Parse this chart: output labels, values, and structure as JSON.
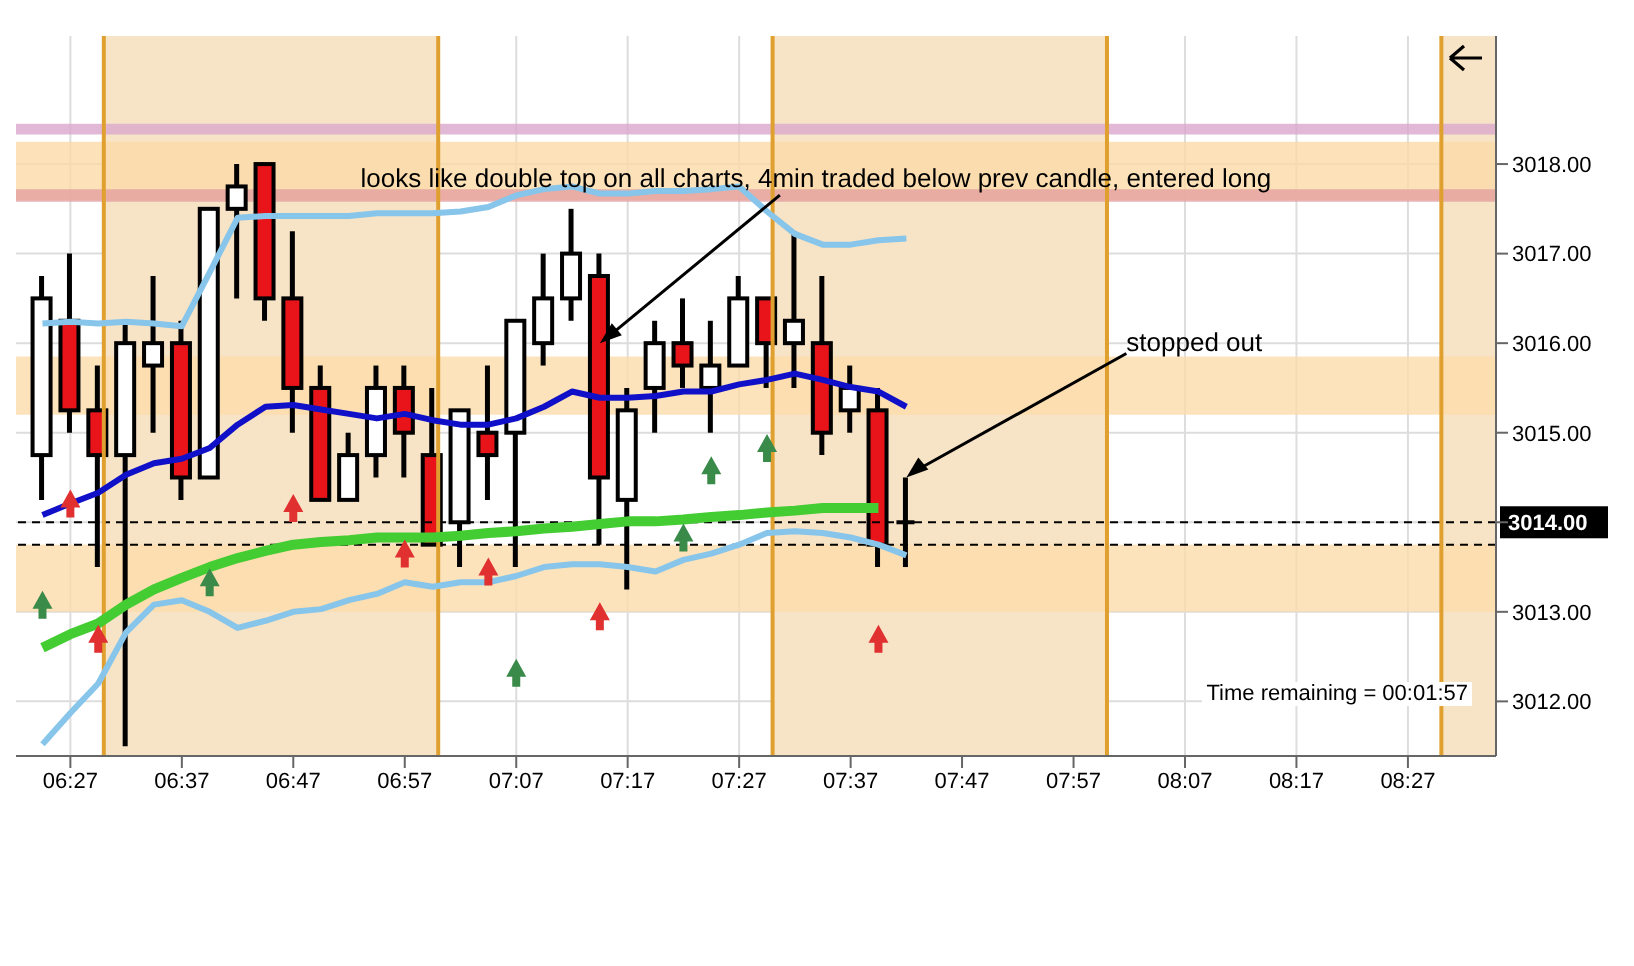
{
  "chart_data": {
    "type": "candlestick",
    "x": [
      6.4083,
      6.45,
      6.4917,
      6.5333,
      6.575,
      6.6167,
      6.6583,
      6.7,
      6.7417,
      6.7833,
      6.825,
      6.8667,
      6.9083,
      6.95,
      6.9917,
      7.0333,
      7.075,
      7.1167,
      7.1583,
      7.2,
      7.2417,
      7.2833,
      7.325,
      7.3667,
      7.4083,
      7.45,
      7.4917,
      7.5333,
      7.575,
      7.6167,
      7.6583,
      7.7
    ],
    "ohlc": [
      [
        3014.75,
        3016.75,
        3014.25,
        3016.5
      ],
      [
        3016.25,
        3017,
        3015,
        3015.25
      ],
      [
        3015.25,
        3015.75,
        3013.5,
        3014.75
      ],
      [
        3014.75,
        3016.25,
        3011.5,
        3016
      ],
      [
        3015.75,
        3016.75,
        3015,
        3016
      ],
      [
        3016,
        3016.25,
        3014.25,
        3014.5
      ],
      [
        3014.5,
        3017.5,
        3014.5,
        3017.5
      ],
      [
        3017.5,
        3018,
        3016.5,
        3017.75
      ],
      [
        3018,
        3018,
        3016.25,
        3016.5
      ],
      [
        3016.5,
        3017.25,
        3015,
        3015.5
      ],
      [
        3015.5,
        3015.75,
        3014.25,
        3014.25
      ],
      [
        3014.25,
        3015,
        3014.25,
        3014.75
      ],
      [
        3014.75,
        3015.75,
        3014.5,
        3015.5
      ],
      [
        3015.5,
        3015.75,
        3014.5,
        3015
      ],
      [
        3014.75,
        3015.5,
        3013.75,
        3013.75
      ],
      [
        3014,
        3015.25,
        3013.5,
        3015.25
      ],
      [
        3015,
        3015.75,
        3014.25,
        3014.75
      ],
      [
        3015,
        3016.25,
        3013.5,
        3016.25
      ],
      [
        3016,
        3017,
        3015.75,
        3016.5
      ],
      [
        3016.5,
        3017.5,
        3016.25,
        3017
      ],
      [
        3016.75,
        3017,
        3013.75,
        3014.5
      ],
      [
        3014.25,
        3015.5,
        3013.25,
        3015.25
      ],
      [
        3015.5,
        3016.25,
        3015,
        3016
      ],
      [
        3016,
        3016.5,
        3015.5,
        3015.75
      ],
      [
        3015.5,
        3016.25,
        3015,
        3015.75
      ],
      [
        3015.75,
        3016.75,
        3015.75,
        3016.5
      ],
      [
        3016.5,
        3016.5,
        3015.5,
        3016
      ],
      [
        3016,
        3017.25,
        3015.5,
        3016.25
      ],
      [
        3016,
        3016.75,
        3014.75,
        3015
      ],
      [
        3015.25,
        3015.75,
        3015,
        3015.5
      ],
      [
        3015.25,
        3015.5,
        3013.5,
        3013.75
      ],
      [
        3014,
        3014.5,
        3013.5,
        3014
      ]
    ],
    "colors": [
      "#ffffff",
      "#e8141a",
      "#e8141a",
      "#ffffff",
      "#ffffff",
      "#e8141a",
      "#ffffff",
      "#ffffff",
      "#e8141a",
      "#e8141a",
      "#e8141a",
      "#ffffff",
      "#ffffff",
      "#e8141a",
      "#e8141a",
      "#ffffff",
      "#e8141a",
      "#ffffff",
      "#ffffff",
      "#ffffff",
      "#e8141a",
      "#ffffff",
      "#ffffff",
      "#e8141a",
      "#ffffff",
      "#ffffff",
      "#e8141a",
      "#ffffff",
      "#e8141a",
      "#ffffff",
      "#e8141a",
      "#000000"
    ],
    "series": [
      {
        "type": "line",
        "color": "#87c5ea",
        "values": [
          3016.22,
          3016.24,
          3016.22,
          3016.24,
          3016.22,
          3016.19,
          3016.79,
          3017.4,
          3017.42,
          3017.42,
          3017.42,
          3017.42,
          3017.45,
          3017.45,
          3017.45,
          3017.47,
          3017.52,
          3017.65,
          3017.72,
          3017.75,
          3017.67,
          3017.67,
          3017.7,
          3017.7,
          3017.72,
          3017.75,
          3017.47,
          3017.22,
          3017.1,
          3017.1,
          3017.15,
          3017.17
        ]
      },
      {
        "type": "line",
        "color": "#87c5ea",
        "values": [
          3011.52,
          3011.87,
          3012.2,
          3012.77,
          3013.08,
          3013.13,
          3013,
          3012.82,
          3012.9,
          3013,
          3013.03,
          3013.13,
          3013.2,
          3013.33,
          3013.28,
          3013.33,
          3013.33,
          3013.4,
          3013.5,
          3013.53,
          3013.53,
          3013.5,
          3013.45,
          3013.58,
          3013.65,
          3013.75,
          3013.88,
          3013.9,
          3013.88,
          3013.83,
          3013.75,
          3013.63
        ]
      },
      {
        "type": "line",
        "color": "#1010c8",
        "values": [
          3014.08,
          3014.21,
          3014.33,
          3014.53,
          3014.66,
          3014.71,
          3014.83,
          3015.09,
          3015.29,
          3015.31,
          3015.26,
          3015.21,
          3015.16,
          3015.21,
          3015.14,
          3015.09,
          3015.09,
          3015.16,
          3015.29,
          3015.46,
          3015.39,
          3015.39,
          3015.41,
          3015.46,
          3015.46,
          3015.54,
          3015.59,
          3015.66,
          3015.59,
          3015.51,
          3015.46,
          3015.29
        ]
      },
      {
        "type": "line",
        "color": "#44cc33",
        "values": [
          3012.6,
          3012.75,
          3012.87,
          3013.08,
          3013.25,
          3013.38,
          3013.5,
          3013.6,
          3013.68,
          3013.75,
          3013.78,
          3013.8,
          3013.83,
          3013.83,
          3013.83,
          3013.85,
          3013.88,
          3013.9,
          3013.93,
          3013.95,
          3013.98,
          3014.01,
          3014.01,
          3014.03,
          3014.06,
          3014.08,
          3014.11,
          3014.13,
          3014.16,
          3014.16,
          3014.16,
          null
        ]
      },
      {
        "type": "scatter",
        "color": "#3a8a4a",
        "marker": "triangle",
        "x": [
          6.4083,
          6.6583,
          7.1167,
          7.3667,
          7.4083,
          7.4917
        ],
        "values": [
          3013.08,
          3013.33,
          3012.32,
          3013.83,
          3014.58,
          3014.83
        ]
      },
      {
        "type": "scatter",
        "color": "#e03030",
        "marker": "triangle",
        "x": [
          6.45,
          6.4917,
          6.7833,
          6.95,
          7.075,
          7.2417,
          7.6583
        ],
        "values": [
          3014.21,
          3012.7,
          3014.16,
          3013.65,
          3013.45,
          3012.95,
          3012.7
        ]
      }
    ],
    "xlim": [
      6.3687,
      8.5817
    ],
    "xticks": [
      {
        "value": 6.45,
        "label": "06:27"
      },
      {
        "value": 6.6167,
        "label": "06:37"
      },
      {
        "value": 6.7833,
        "label": "06:47"
      },
      {
        "value": 6.95,
        "label": "06:57"
      },
      {
        "value": 7.1167,
        "label": "07:07"
      },
      {
        "value": 7.2833,
        "label": "07:17"
      },
      {
        "value": 7.45,
        "label": "07:27"
      },
      {
        "value": 7.6167,
        "label": "07:37"
      },
      {
        "value": 7.7833,
        "label": "07:47"
      },
      {
        "value": 7.95,
        "label": "07:57"
      },
      {
        "value": 8.1167,
        "label": "08:07"
      },
      {
        "value": 8.2833,
        "label": "08:17"
      },
      {
        "value": 8.45,
        "label": "08:27"
      }
    ],
    "ylim": [
      3011.39,
      3019.43
    ],
    "yticks": [
      {
        "value": 3012,
        "label": "3012.00"
      },
      {
        "value": 3013,
        "label": "3013.00"
      },
      {
        "value": 3014,
        "label": null
      },
      {
        "value": 3015,
        "label": "3015.00"
      },
      {
        "value": 3016,
        "label": "3016.00"
      },
      {
        "value": 3017,
        "label": "3017.00"
      },
      {
        "value": 3018,
        "label": "3018.00"
      }
    ],
    "grid": true,
    "bands": [
      {
        "axis": "x",
        "from": 6.5,
        "to": 7.0,
        "color": "#f7e3c6"
      },
      {
        "axis": "x",
        "from": 7.5,
        "to": 8.0,
        "color": "#f7e3c6"
      },
      {
        "axis": "x",
        "from": 8.5,
        "to": 8.5817,
        "color": "#f7e3c6"
      },
      {
        "axis": "y",
        "from": 3017.6,
        "to": 3018.25,
        "color": "#fbd9a8"
      },
      {
        "axis": "y",
        "from": 3018.33,
        "to": 3018.45,
        "color": "#d9a8cc"
      },
      {
        "axis": "y",
        "from": 3017.58,
        "to": 3017.72,
        "color": "#e3a0a0"
      },
      {
        "axis": "y",
        "from": 3015.2,
        "to": 3015.85,
        "color": "#fcdcaa"
      },
      {
        "axis": "y",
        "from": 3013,
        "to": 3013.75,
        "color": "#fcdcaa"
      }
    ],
    "ref_lines": [
      {
        "axis": "y",
        "value": 3014,
        "label": "3014.00",
        "color": "#000000",
        "line_style": "dashed"
      },
      {
        "axis": "y",
        "value": 3013.75,
        "color": "#000000",
        "line_style": "dashed"
      },
      {
        "axis": "x",
        "value": 6.5,
        "color": "#e0a030",
        "line_style": "solid"
      },
      {
        "axis": "x",
        "value": 7.0,
        "color": "#e0a030",
        "line_style": "solid"
      },
      {
        "axis": "x",
        "value": 7.5,
        "color": "#e0a030",
        "line_style": "solid"
      },
      {
        "axis": "x",
        "value": 8.0,
        "color": "#e0a030",
        "line_style": "solid"
      },
      {
        "axis": "x",
        "value": 8.5,
        "color": "#e0a030",
        "line_style": "solid"
      }
    ],
    "annotations": [
      {
        "text": "looks like double top on all charts, 4min traded below prev candle, entered long",
        "x": 7.2417,
        "y": 3016
      },
      {
        "text": "stopped out",
        "x": 7.7,
        "y": 3014.5
      },
      "Time remaining = 00:01:57"
    ]
  }
}
